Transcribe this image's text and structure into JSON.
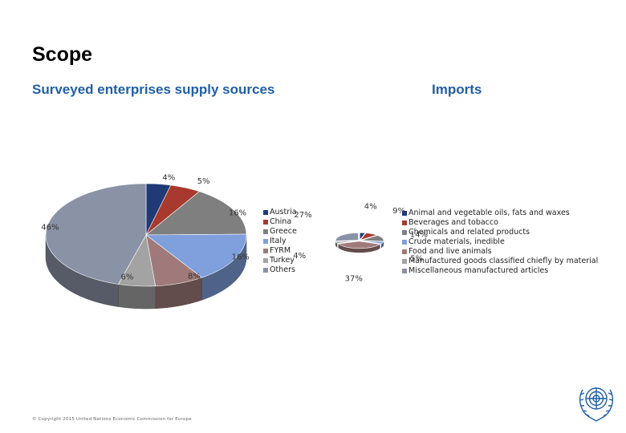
{
  "slide": {
    "title": "Scope"
  },
  "left_chart": {
    "title": "Surveyed enterprises supply sources",
    "legend": [
      "Austria",
      "China",
      "Greece",
      "Italy",
      "FYRM",
      "Turkey",
      "Others"
    ],
    "percent_labels": [
      "4%",
      "5%",
      "16%",
      "16%",
      "8%",
      "6%",
      "46%"
    ],
    "colors": [
      "#1f3a75",
      "#a8392e",
      "#7f7f7f",
      "#7f9fdd",
      "#a07a7a",
      "#a3a3a3",
      "#8a92a6"
    ]
  },
  "right_chart": {
    "title": "Imports",
    "legend": [
      "Animal and vegetable oils, fats and waxes",
      "Beverages and tobacco",
      "Chemicals and related products",
      "Crude materials, inedible",
      "Food and live animals",
      "Manufactured goods classified chiefly by material",
      "Miscellaneous manufactured articles"
    ],
    "percent_labels": [
      "4%",
      "9%",
      "14%",
      "5%",
      "37%",
      "4%",
      "27%"
    ],
    "colors": [
      "#1f3a75",
      "#a8392e",
      "#7f7f7f",
      "#7f9fdd",
      "#a07a7a",
      "#a3a3a3",
      "#8a92a6"
    ]
  },
  "chart_data": [
    {
      "type": "pie",
      "title": "Surveyed enterprises supply sources",
      "categories": [
        "Austria",
        "China",
        "Greece",
        "Italy",
        "FYRM",
        "Turkey",
        "Others"
      ],
      "values": [
        4,
        5,
        16,
        16,
        8,
        6,
        46
      ],
      "unit": "%"
    },
    {
      "type": "pie",
      "title": "Imports",
      "categories": [
        "Animal and vegetable oils, fats and waxes",
        "Beverages and tobacco",
        "Chemicals and related products",
        "Crude materials, inedible",
        "Food and live animals",
        "Manufactured goods classified chiefly by material",
        "Miscellaneous manufactured articles"
      ],
      "values": [
        4,
        9,
        14,
        5,
        37,
        4,
        27
      ],
      "unit": "%"
    }
  ],
  "footer": {
    "copyright": "© Copyright 2015 United Nations Economic Commission for Europe"
  }
}
